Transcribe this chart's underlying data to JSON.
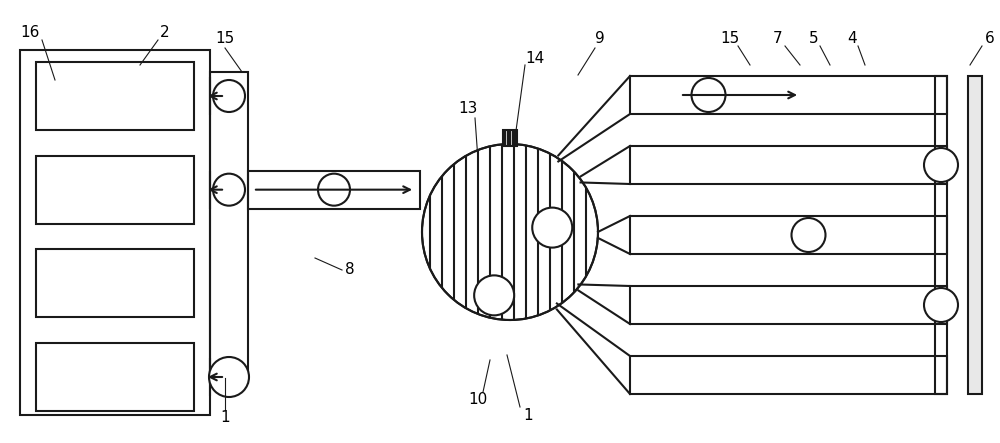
{
  "bg_color": "#ffffff",
  "line_color": "#1a1a1a",
  "lw": 1.5,
  "figsize": [
    10.0,
    4.43
  ],
  "dpi": 100
}
